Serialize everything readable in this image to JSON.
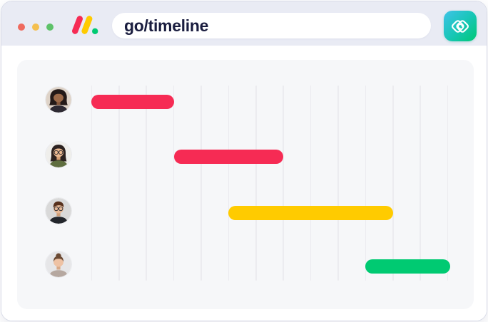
{
  "browser_chrome": {
    "window_controls": [
      {
        "name": "close",
        "color": "#ef6a5e"
      },
      {
        "name": "minimize",
        "color": "#f4bf4f"
      },
      {
        "name": "zoom",
        "color": "#5ec269"
      }
    ],
    "logo": {
      "name": "monday-logo",
      "red": "#f62b54",
      "yellow": "#ffcb00",
      "green": "#00ca72"
    },
    "address": {
      "value": "go/timeline",
      "text_color": "#1a1d3f"
    },
    "app_icon": {
      "name": "interlocked-diamonds",
      "gradient_start": "#3fc3e8",
      "gradient_end": "#00c875",
      "glyph_color": "#ffffff"
    }
  },
  "colors": {
    "topbar_bg": "#e9ebf4",
    "window_bg": "#ffffff",
    "panel_bg": "#f6f7f9",
    "gridline": "#ececf0"
  },
  "chart_data": {
    "type": "gantt",
    "grid_columns": 14,
    "rows": [
      {
        "avatar": "woman-dark-curly-hair",
        "start": 0,
        "span": 3,
        "color": "#f62b54"
      },
      {
        "avatar": "woman-long-hair-glasses",
        "start": 3,
        "span": 4,
        "color": "#f62b54"
      },
      {
        "avatar": "man-quiff-glasses",
        "start": 5,
        "span": 6,
        "color": "#ffcb00"
      },
      {
        "avatar": "woman-hair-bun",
        "start": 10,
        "span": 3.1,
        "color": "#00ca72"
      }
    ]
  },
  "avatars": {
    "woman-dark-curly-hair": {
      "style": "curly",
      "bg": "#ded3c8",
      "skin": "#9c6a49",
      "skin_shadow": "#84563a",
      "hair": "#241a18",
      "shirt": "#2e2a33",
      "glasses": false
    },
    "woman-long-hair-glasses": {
      "style": "long",
      "bg": "#efeeeb",
      "skin": "#eab890",
      "skin_shadow": "#d49f74",
      "hair": "#2c2220",
      "shirt": "#5f6e3f",
      "glasses": true
    },
    "man-quiff-glasses": {
      "style": "quiff",
      "bg": "#d9d9d9",
      "skin": "#e6b896",
      "skin_shadow": "#cf9e78",
      "hair": "#57301c",
      "shirt": "#23262c",
      "glasses": true
    },
    "woman-hair-bun": {
      "style": "bun",
      "bg": "#e6e6e8",
      "skin": "#eec2a4",
      "skin_shadow": "#d8a988",
      "hair": "#6b4a34",
      "shirt": "#b6a8a0",
      "glasses": false
    }
  }
}
